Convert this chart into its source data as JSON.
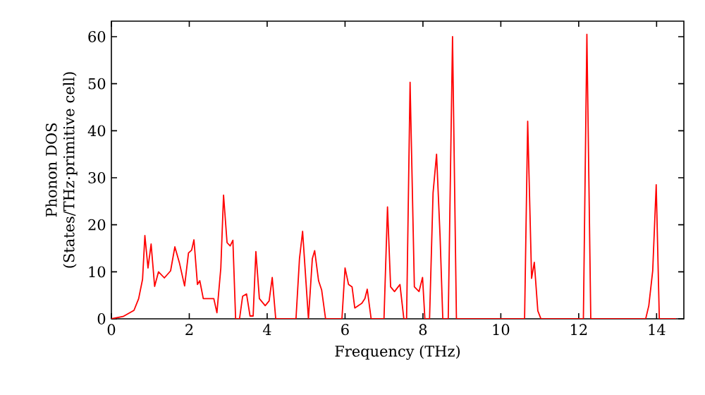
{
  "chart_data": {
    "type": "line",
    "xlabel": "Frequency (THz)",
    "ylabel": "Phonon DOS\n(States/THz·primitive cell)",
    "xlim": [
      0,
      14.7
    ],
    "ylim": [
      0,
      63.3
    ],
    "xticks": [
      0,
      2,
      4,
      6,
      8,
      10,
      12,
      14
    ],
    "yticks": [
      0,
      10,
      20,
      30,
      40,
      50,
      60
    ],
    "marker": "none",
    "line_style": "solid",
    "series": [
      {
        "color": "#ff0000",
        "x": [
          0,
          0.3,
          0.58,
          0.7,
          0.8,
          0.86,
          0.94,
          1.02,
          1.11,
          1.21,
          1.36,
          1.52,
          1.63,
          1.75,
          1.88,
          1.98,
          2.06,
          2.12,
          2.21,
          2.27,
          2.36,
          2.63,
          2.71,
          2.81,
          2.88,
          2.97,
          3.05,
          3.12,
          3.19,
          3.29,
          3.37,
          3.47,
          3.56,
          3.64,
          3.71,
          3.8,
          3.95,
          4.05,
          4.13,
          4.22,
          4.74,
          4.83,
          4.91,
          5.06,
          5.16,
          5.22,
          5.32,
          5.4,
          5.5,
          5.92,
          6.0,
          6.09,
          6.18,
          6.25,
          6.43,
          6.51,
          6.57,
          6.67,
          7.0,
          7.09,
          7.17,
          7.27,
          7.41,
          7.51,
          7.58,
          7.67,
          7.78,
          7.9,
          7.99,
          8.05,
          8.17,
          8.26,
          8.35,
          8.44,
          8.51,
          8.65,
          8.76,
          8.86,
          10.61,
          10.69,
          10.79,
          10.86,
          10.95,
          11.03,
          12.12,
          12.21,
          12.31,
          13.72,
          13.8,
          13.9,
          13.99,
          14.07,
          14.5
        ],
        "values": [
          0,
          0.5,
          1.8,
          4.3,
          8.4,
          17.7,
          10.8,
          15.9,
          6.9,
          10,
          8.7,
          10.2,
          15.3,
          11.8,
          7,
          14,
          14.6,
          16.8,
          7.3,
          8.1,
          4.3,
          4.3,
          1.3,
          10.8,
          26.3,
          16.2,
          15.5,
          16.7,
          0,
          0,
          4.8,
          5.3,
          0.6,
          0.6,
          14.3,
          4.3,
          2.8,
          3.8,
          8.8,
          0,
          0,
          12.8,
          18.6,
          0,
          12.8,
          14.5,
          8.1,
          6.1,
          0,
          0,
          10.8,
          7.3,
          6.8,
          2.3,
          3.3,
          4.3,
          6.3,
          0,
          0,
          23.8,
          6.8,
          5.8,
          7.3,
          0,
          0,
          50.3,
          6.8,
          5.8,
          8.8,
          0,
          0,
          26.8,
          35,
          17.5,
          0,
          0,
          60,
          0,
          0,
          42,
          8.6,
          12,
          1.7,
          0,
          0,
          60.5,
          0,
          0,
          2.8,
          10.2,
          28.5,
          0,
          0
        ]
      }
    ]
  }
}
